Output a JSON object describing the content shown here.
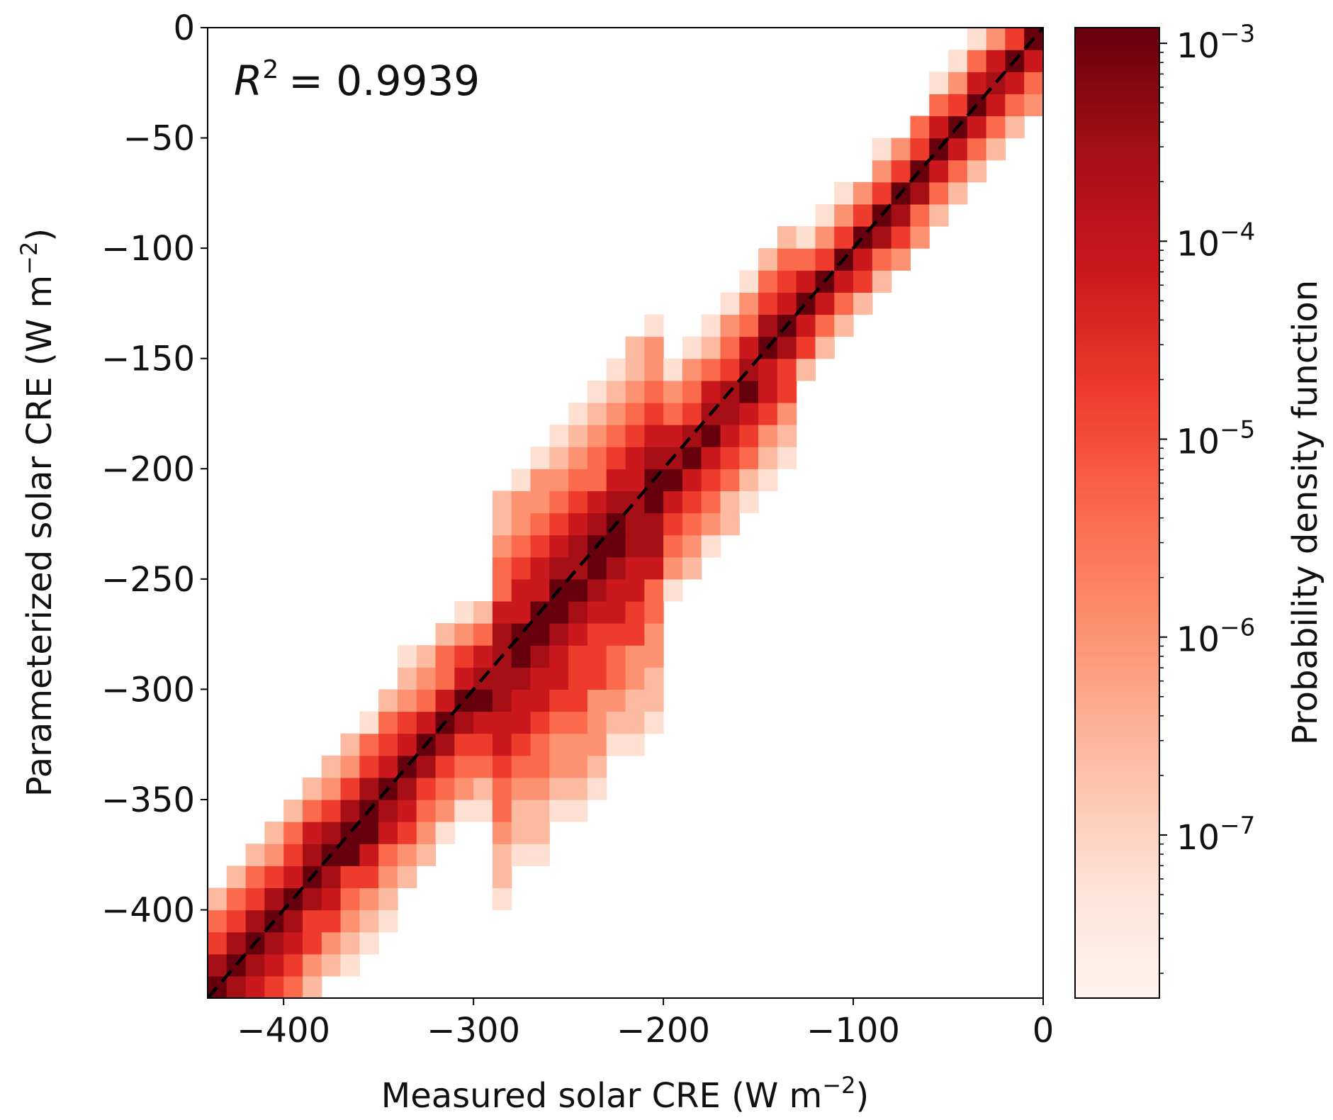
{
  "chart_data": {
    "type": "heatmap",
    "annotation": {
      "label": "R",
      "sup": "2",
      "text": "= 0.9939"
    },
    "xlabel": {
      "prefix": "Measured solar CRE (W m",
      "sup": "−2",
      "suffix": ")"
    },
    "ylabel": {
      "prefix": "Parameterized solar CRE (W m",
      "sup": "−2",
      "suffix": ")"
    },
    "xlim": [
      -440,
      0
    ],
    "ylim": [
      -440,
      0
    ],
    "bin_width": 10,
    "x_ticks": [
      {
        "value": -400,
        "label": "−400"
      },
      {
        "value": -300,
        "label": "−300"
      },
      {
        "value": -200,
        "label": "−200"
      },
      {
        "value": -100,
        "label": "−100"
      },
      {
        "value": 0,
        "label": "0"
      }
    ],
    "y_ticks": [
      {
        "value": 0,
        "label": "0"
      },
      {
        "value": -50,
        "label": "−50"
      },
      {
        "value": -100,
        "label": "−100"
      },
      {
        "value": -150,
        "label": "−150"
      },
      {
        "value": -200,
        "label": "−200"
      },
      {
        "value": -250,
        "label": "−250"
      },
      {
        "value": -300,
        "label": "−300"
      },
      {
        "value": -350,
        "label": "−350"
      },
      {
        "value": -400,
        "label": "−400"
      }
    ],
    "reference_line": {
      "style": "dashed",
      "color": "#000000",
      "from": [
        -440,
        -440
      ],
      "to": [
        0,
        0
      ]
    },
    "colorbar": {
      "label": "Probability density function",
      "scale": "log",
      "range": [
        1.5e-08,
        0.0012
      ],
      "ticks": [
        {
          "value": 0.001,
          "base": "10",
          "exp": "−3"
        },
        {
          "value": 0.0001,
          "base": "10",
          "exp": "−4"
        },
        {
          "value": 1e-05,
          "base": "10",
          "exp": "−5"
        },
        {
          "value": 1e-06,
          "base": "10",
          "exp": "−6"
        },
        {
          "value": 1e-07,
          "base": "10",
          "exp": "−7"
        }
      ],
      "colors": [
        "#fff5f0",
        "#fee0d2",
        "#fcbba1",
        "#fc9272",
        "#fb6a4a",
        "#ef3b2c",
        "#cb181d",
        "#a50f15",
        "#67000d"
      ]
    },
    "model": {
      "description": "2D histogram of measured vs parameterized solar CRE clustered along the 1:1 line",
      "r_squared": 0.9939
    }
  }
}
